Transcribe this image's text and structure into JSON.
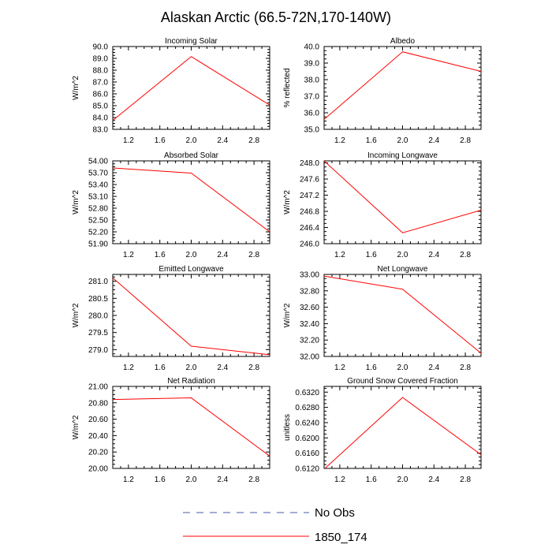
{
  "main_title": "Alaskan Arctic (66.5-72N,170-140W)",
  "colors": {
    "model": "#ff0000",
    "obs": "#4a5aa8",
    "axis": "#000000"
  },
  "legend": {
    "obs_label": "No Obs",
    "model_label": "1850_174"
  },
  "chart_data": [
    {
      "type": "line",
      "title": "Incoming Solar",
      "ylabel": "W/m^2",
      "xlim": [
        1,
        3
      ],
      "ylim": [
        83.0,
        90.0
      ],
      "xticks": [
        "1.2",
        "1.6",
        "2.0",
        "2.4",
        "2.8"
      ],
      "xtick_values": [
        1.2,
        1.6,
        2.0,
        2.4,
        2.8
      ],
      "yticks": [
        "83.0",
        "84.0",
        "85.0",
        "86.0",
        "87.0",
        "88.0",
        "89.0",
        "90.0"
      ],
      "ytick_values": [
        83.0,
        84.0,
        85.0,
        86.0,
        87.0,
        88.0,
        89.0,
        90.0
      ],
      "series": [
        {
          "name": "1850_174",
          "x": [
            1,
            2,
            3
          ],
          "y": [
            83.75,
            89.15,
            85.05
          ]
        }
      ]
    },
    {
      "type": "line",
      "title": "Albedo",
      "ylabel": "% reflected",
      "xlim": [
        1,
        3
      ],
      "ylim": [
        35.0,
        40.0
      ],
      "xticks": [
        "1.2",
        "1.6",
        "2.0",
        "2.4",
        "2.8"
      ],
      "xtick_values": [
        1.2,
        1.6,
        2.0,
        2.4,
        2.8
      ],
      "yticks": [
        "35.0",
        "36.0",
        "37.0",
        "38.0",
        "39.0",
        "40.0"
      ],
      "ytick_values": [
        35.0,
        36.0,
        37.0,
        38.0,
        39.0,
        40.0
      ],
      "series": [
        {
          "name": "1850_174",
          "x": [
            1,
            2,
            3
          ],
          "y": [
            35.6,
            39.68,
            38.5
          ]
        }
      ]
    },
    {
      "type": "line",
      "title": "Absorbed Solar",
      "ylabel": "W/m^2",
      "xlim": [
        1,
        3
      ],
      "ylim": [
        51.9,
        54.0
      ],
      "xticks": [
        "1.2",
        "1.6",
        "2.0",
        "2.4",
        "2.8"
      ],
      "xtick_values": [
        1.2,
        1.6,
        2.0,
        2.4,
        2.8
      ],
      "yticks": [
        "51.90",
        "52.20",
        "52.50",
        "52.80",
        "53.10",
        "53.40",
        "53.70",
        "54.00"
      ],
      "ytick_values": [
        51.9,
        52.2,
        52.5,
        52.8,
        53.1,
        53.4,
        53.7,
        54.0
      ],
      "series": [
        {
          "name": "1850_174",
          "x": [
            1,
            2,
            3
          ],
          "y": [
            53.82,
            53.69,
            52.2
          ]
        }
      ]
    },
    {
      "type": "line",
      "title": "Incoming Longwave",
      "ylabel": "W/m^2",
      "xlim": [
        1,
        3
      ],
      "ylim": [
        246.0,
        248.05
      ],
      "xticks": [
        "1.2",
        "1.6",
        "2.0",
        "2.4",
        "2.8"
      ],
      "xtick_values": [
        1.2,
        1.6,
        2.0,
        2.4,
        2.8
      ],
      "yticks": [
        "246.0",
        "246.4",
        "246.8",
        "247.2",
        "247.6",
        "248.0"
      ],
      "ytick_values": [
        246.0,
        246.4,
        246.8,
        247.2,
        247.6,
        248.0
      ],
      "series": [
        {
          "name": "1850_174",
          "x": [
            1,
            2,
            3
          ],
          "y": [
            248.05,
            246.27,
            246.83
          ]
        }
      ]
    },
    {
      "type": "line",
      "title": "Emitted Longwave",
      "ylabel": "W/m^2",
      "xlim": [
        1,
        3
      ],
      "ylim": [
        278.8,
        281.2
      ],
      "xticks": [
        "1.2",
        "1.6",
        "2.0",
        "2.4",
        "2.8"
      ],
      "xtick_values": [
        1.2,
        1.6,
        2.0,
        2.4,
        2.8
      ],
      "yticks": [
        "279.0",
        "279.5",
        "280.0",
        "280.5",
        "281.0"
      ],
      "ytick_values": [
        279.0,
        279.5,
        280.0,
        280.5,
        281.0
      ],
      "series": [
        {
          "name": "1850_174",
          "x": [
            1,
            2,
            3
          ],
          "y": [
            281.1,
            279.1,
            278.85
          ]
        }
      ]
    },
    {
      "type": "line",
      "title": "Net Longwave",
      "ylabel": "W/m^2",
      "xlim": [
        1,
        3
      ],
      "ylim": [
        32.0,
        33.0
      ],
      "xticks": [
        "1.2",
        "1.6",
        "2.0",
        "2.4",
        "2.8"
      ],
      "xtick_values": [
        1.2,
        1.6,
        2.0,
        2.4,
        2.8
      ],
      "yticks": [
        "32.00",
        "32.20",
        "32.40",
        "32.60",
        "32.80",
        "33.00"
      ],
      "ytick_values": [
        32.0,
        32.2,
        32.4,
        32.6,
        32.8,
        33.0
      ],
      "series": [
        {
          "name": "1850_174",
          "x": [
            1,
            2,
            3
          ],
          "y": [
            32.98,
            32.82,
            32.04
          ]
        }
      ]
    },
    {
      "type": "line",
      "title": "Net Radiation",
      "ylabel": "W/m^2",
      "xlim": [
        1,
        3
      ],
      "ylim": [
        20.0,
        21.0
      ],
      "xticks": [
        "1.2",
        "1.6",
        "2.0",
        "2.4",
        "2.8"
      ],
      "xtick_values": [
        1.2,
        1.6,
        2.0,
        2.4,
        2.8
      ],
      "yticks": [
        "20.00",
        "20.20",
        "20.40",
        "20.60",
        "20.80",
        "21.00"
      ],
      "ytick_values": [
        20.0,
        20.2,
        20.4,
        20.6,
        20.8,
        21.0
      ],
      "series": [
        {
          "name": "1850_174",
          "x": [
            1,
            2,
            3
          ],
          "y": [
            20.84,
            20.86,
            20.15
          ]
        }
      ]
    },
    {
      "type": "line",
      "title": "Ground Snow Covered Fraction",
      "ylabel": "unitless",
      "xlim": [
        1,
        3
      ],
      "ylim": [
        0.612,
        0.6335
      ],
      "xticks": [
        "1.2",
        "1.6",
        "2.0",
        "2.4",
        "2.8"
      ],
      "xtick_values": [
        1.2,
        1.6,
        2.0,
        2.4,
        2.8
      ],
      "yticks": [
        "0.6120",
        "0.6160",
        "0.6200",
        "0.6240",
        "0.6280",
        "0.6320"
      ],
      "ytick_values": [
        0.612,
        0.616,
        0.62,
        0.624,
        0.628,
        0.632
      ],
      "series": [
        {
          "name": "1850_174",
          "x": [
            1,
            2,
            3
          ],
          "y": [
            0.6118,
            0.6306,
            0.6156
          ]
        }
      ]
    }
  ]
}
